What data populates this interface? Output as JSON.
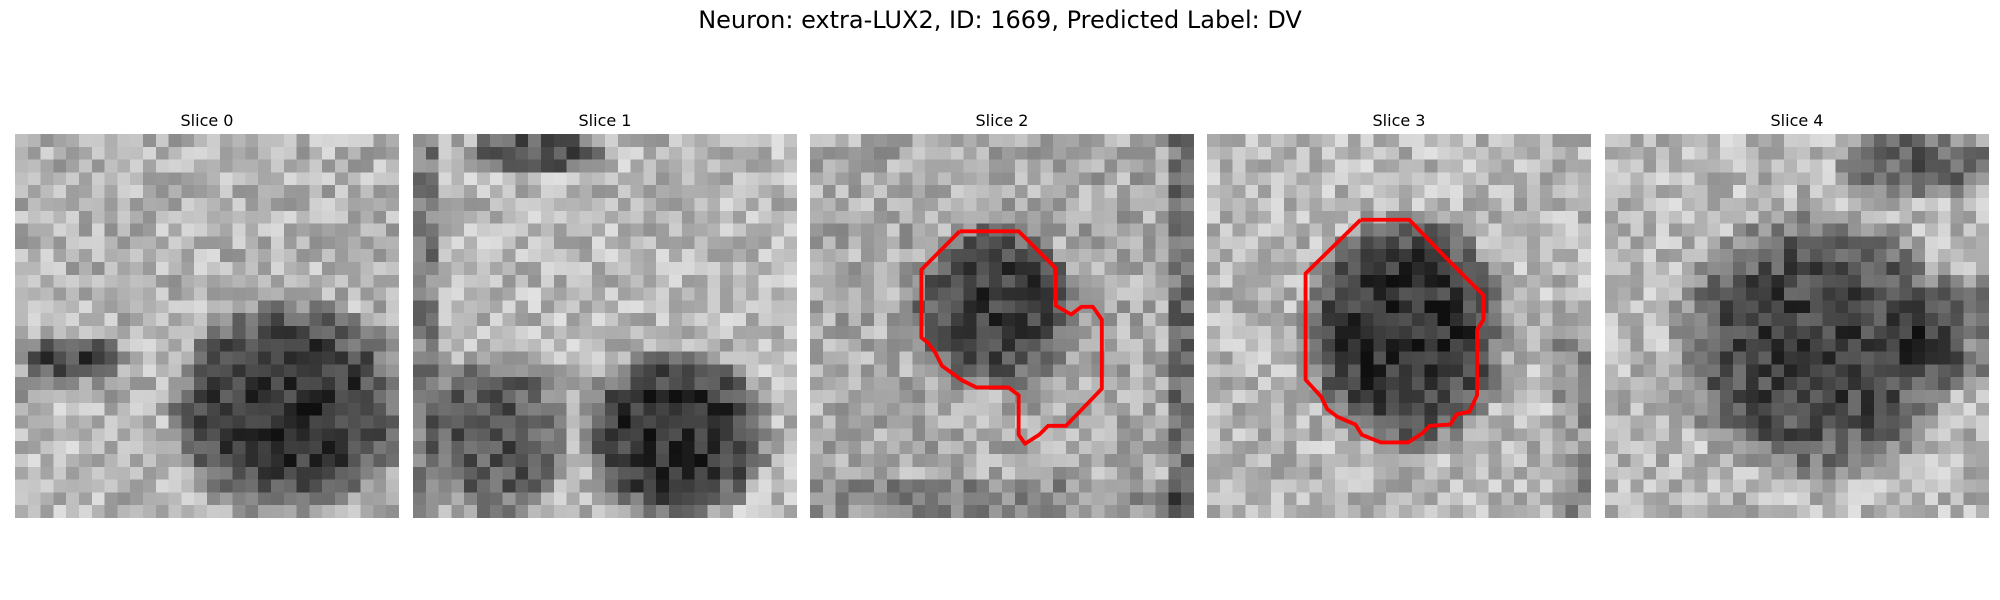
{
  "title": "Neuron: extra-LUX2, ID: 1669, Predicted Label: DV",
  "panels": [
    {
      "title": "Slice 0"
    },
    {
      "title": "Slice 1"
    },
    {
      "title": "Slice 2"
    },
    {
      "title": "Slice 3"
    },
    {
      "title": "Slice 4"
    }
  ],
  "contour_color": "#ff0000"
}
